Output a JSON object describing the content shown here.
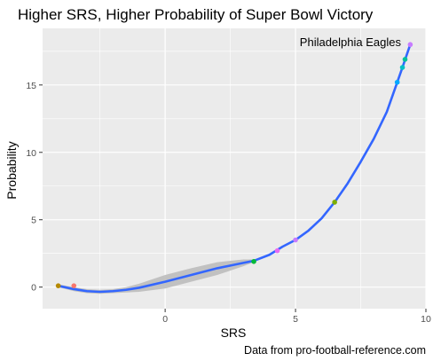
{
  "chart_data": {
    "type": "scatter",
    "title": "Higher SRS, Higher Probability of Super Bowl Victory",
    "xlabel": "SRS",
    "ylabel": "Probability",
    "caption": "Data from pro-football-reference.com",
    "annotation": {
      "text": "Philadelphia Eagles",
      "x": 9.4,
      "y": 18.0
    },
    "xlim": [
      -4.7,
      10.0
    ],
    "ylim": [
      -1.6,
      19.2
    ],
    "x_ticks": [
      0,
      5,
      10
    ],
    "y_ticks": [
      0,
      5,
      10,
      15
    ],
    "grid": true,
    "legend": "none",
    "points": [
      {
        "x": -4.1,
        "y": 0.1,
        "color": "#b58900"
      },
      {
        "x": -3.5,
        "y": 0.1,
        "color": "#f8766d"
      },
      {
        "x": 3.4,
        "y": 1.9,
        "color": "#00ba38"
      },
      {
        "x": 4.3,
        "y": 2.7,
        "color": "#e76bf3"
      },
      {
        "x": 5.0,
        "y": 3.5,
        "color": "#c77cff"
      },
      {
        "x": 6.5,
        "y": 6.3,
        "color": "#7cae00"
      },
      {
        "x": 8.9,
        "y": 15.2,
        "color": "#00a9ff"
      },
      {
        "x": 9.1,
        "y": 16.3,
        "color": "#00bfc4"
      },
      {
        "x": 9.2,
        "y": 16.9,
        "color": "#00c19a"
      },
      {
        "x": 9.4,
        "y": 18.0,
        "color": "#c77cff"
      }
    ],
    "fit_line": {
      "x": [
        -4.1,
        -3.5,
        -3.0,
        -2.5,
        -2.0,
        -1.5,
        -1.0,
        0.0,
        1.0,
        2.0,
        3.0,
        3.4,
        4.0,
        4.5,
        5.0,
        5.5,
        6.0,
        6.5,
        7.0,
        7.5,
        8.0,
        8.5,
        8.9,
        9.1,
        9.4
      ],
      "y": [
        0.1,
        -0.15,
        -0.3,
        -0.35,
        -0.3,
        -0.2,
        -0.05,
        0.4,
        0.9,
        1.4,
        1.8,
        1.95,
        2.4,
        3.0,
        3.5,
        4.2,
        5.1,
        6.3,
        7.7,
        9.3,
        11.0,
        13.0,
        15.2,
        16.3,
        18.0
      ]
    },
    "fit_band": {
      "x": [
        -4.1,
        -3.5,
        -3.0,
        -2.5,
        -2.0,
        -1.5,
        -1.0,
        0.0,
        1.0,
        2.0,
        3.0,
        3.4
      ],
      "lower": [
        0.0,
        -0.3,
        -0.45,
        -0.5,
        -0.45,
        -0.4,
        -0.35,
        -0.1,
        0.4,
        0.9,
        1.55,
        1.85
      ],
      "upper": [
        0.2,
        0.0,
        -0.15,
        -0.2,
        -0.15,
        0.0,
        0.25,
        0.9,
        1.4,
        1.85,
        2.05,
        2.05
      ]
    },
    "colors": {
      "panel": "#ebebeb",
      "grid": "#ffffff",
      "line": "#3366ff",
      "band": "#bdbdbd"
    }
  }
}
